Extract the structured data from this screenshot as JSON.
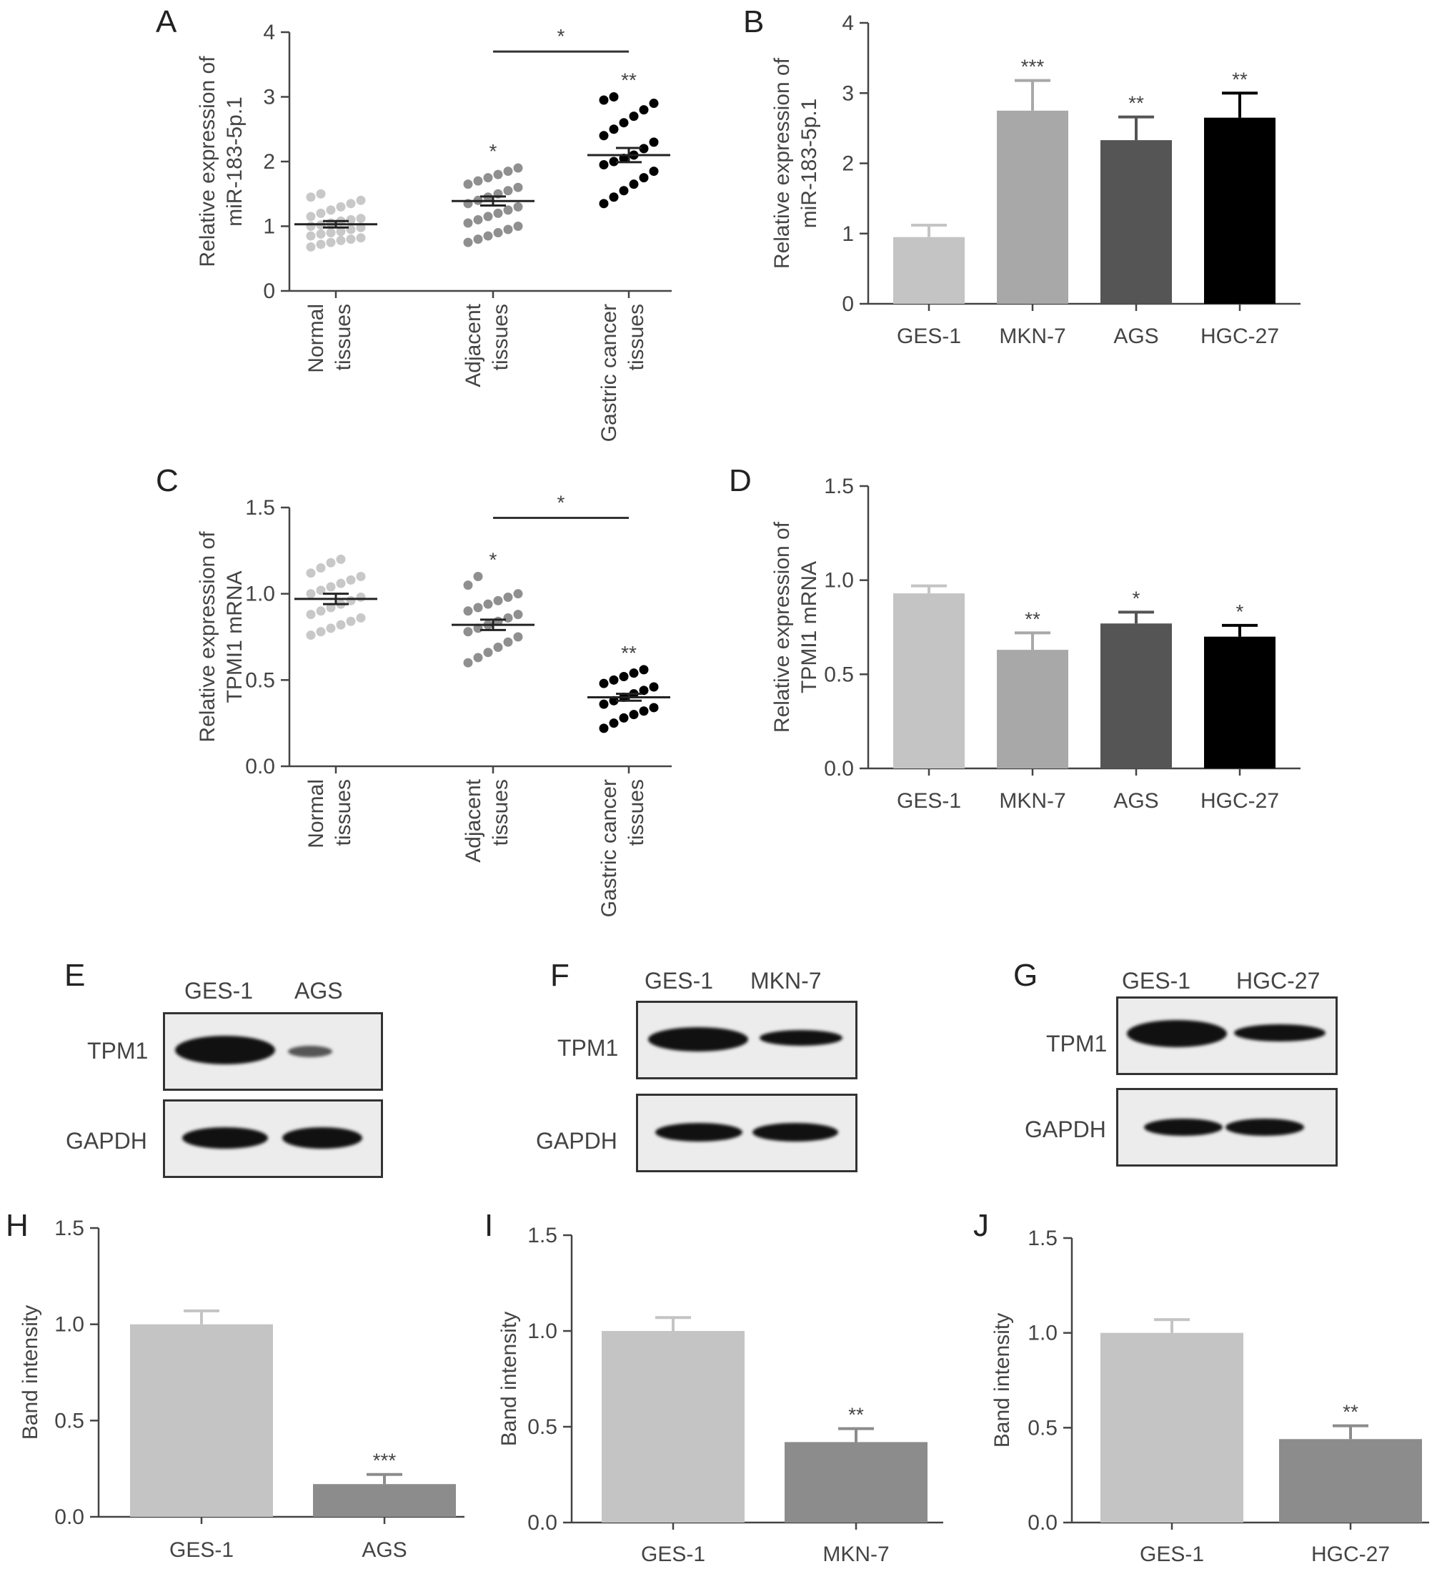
{
  "panels": {
    "A": {
      "letter": "A",
      "ylabel": [
        "Relative expression of",
        "miR-183-5p.1"
      ]
    },
    "B": {
      "letter": "B",
      "ylabel": [
        "Relative expression of",
        "miR-183-5p.1"
      ]
    },
    "C": {
      "letter": "C",
      "ylabel": [
        "Relative expression of",
        "TPMI1 mRNA"
      ]
    },
    "D": {
      "letter": "D",
      "ylabel": [
        "Relative expression of",
        "TPMI1 mRNA"
      ]
    },
    "E": {
      "letter": "E",
      "lanes": [
        "GES-1",
        "AGS"
      ],
      "rows": [
        "TPM1",
        "GAPDH"
      ]
    },
    "F": {
      "letter": "F",
      "lanes": [
        "GES-1",
        "MKN-7"
      ],
      "rows": [
        "TPM1",
        "GAPDH"
      ]
    },
    "G": {
      "letter": "G",
      "lanes": [
        "GES-1",
        "HGC-27"
      ],
      "rows": [
        "TPM1",
        "GAPDH"
      ]
    },
    "H": {
      "letter": "H",
      "ylabel": [
        "Band intensity"
      ]
    },
    "I": {
      "letter": "I",
      "ylabel": [
        "Band intensity"
      ]
    },
    "J": {
      "letter": "J",
      "ylabel": [
        "Band intensity"
      ]
    }
  },
  "colors": {
    "normal": "#c8c8c8",
    "adjacent": "#8f8f8f",
    "cancer": "#000000",
    "ges1": "#c4c4c4",
    "mkn7": "#a8a8a8",
    "ags": "#555555",
    "hgc27": "#000000",
    "bar_grey": "#8c8c8c",
    "sig": "#888888"
  },
  "chart_data": [
    {
      "panel": "A",
      "type": "scatter",
      "categories": [
        [
          "Normal",
          "tissues"
        ],
        [
          "Adjacent",
          "tissues"
        ],
        [
          "Gastric cancer",
          "tissues"
        ]
      ],
      "ylim": [
        0,
        4
      ],
      "yticks": [
        "0",
        "1",
        "2",
        "3",
        "4"
      ],
      "means": [
        1.03,
        1.39,
        2.1
      ],
      "sem": [
        0.05,
        0.07,
        0.11
      ],
      "points": [
        [
          0.68,
          0.72,
          0.75,
          0.78,
          0.8,
          0.82,
          0.85,
          0.88,
          0.9,
          0.92,
          0.95,
          0.98,
          1.0,
          1.02,
          1.05,
          1.08,
          1.1,
          1.12,
          1.15,
          1.2,
          1.25,
          1.3,
          1.35,
          1.4,
          1.45,
          1.5
        ],
        [
          0.75,
          0.8,
          0.85,
          0.9,
          0.95,
          1.0,
          1.05,
          1.1,
          1.15,
          1.2,
          1.25,
          1.3,
          1.35,
          1.4,
          1.45,
          1.5,
          1.55,
          1.6,
          1.65,
          1.7,
          1.75,
          1.8,
          1.85,
          1.9
        ],
        [
          1.35,
          1.45,
          1.55,
          1.65,
          1.75,
          1.85,
          1.95,
          2.0,
          2.05,
          2.1,
          2.2,
          2.3,
          2.4,
          2.5,
          2.6,
          2.7,
          2.8,
          2.9,
          2.95,
          3.0
        ]
      ],
      "stars": [
        "",
        "*",
        "**"
      ],
      "bracket": {
        "from": 1,
        "to": 2,
        "y": 3.7,
        "label": "*"
      }
    },
    {
      "panel": "B",
      "type": "bar",
      "categories": [
        "GES-1",
        "MKN-7",
        "AGS",
        "HGC-27"
      ],
      "values": [
        0.95,
        2.75,
        2.33,
        2.65
      ],
      "errors": [
        0.17,
        0.43,
        0.33,
        0.35
      ],
      "ylim": [
        0,
        4
      ],
      "yticks": [
        "0",
        "1",
        "2",
        "3",
        "4"
      ],
      "stars": [
        "",
        "***",
        "**",
        "**"
      ]
    },
    {
      "panel": "C",
      "type": "scatter",
      "categories": [
        [
          "Normal",
          "tissues"
        ],
        [
          "Adjacent",
          "tissues"
        ],
        [
          "Gastric cancer",
          "tissues"
        ]
      ],
      "ylim": [
        0,
        1.5
      ],
      "yticks": [
        "0.0",
        "0.5",
        "1.0",
        "1.5"
      ],
      "means": [
        0.97,
        0.82,
        0.4
      ],
      "sem": [
        0.03,
        0.03,
        0.02
      ],
      "points": [
        [
          0.76,
          0.78,
          0.8,
          0.82,
          0.84,
          0.86,
          0.88,
          0.9,
          0.92,
          0.94,
          0.96,
          0.98,
          1.0,
          1.02,
          1.04,
          1.06,
          1.08,
          1.1,
          1.12,
          1.15,
          1.18,
          1.2
        ],
        [
          0.6,
          0.63,
          0.66,
          0.69,
          0.72,
          0.75,
          0.78,
          0.8,
          0.82,
          0.84,
          0.86,
          0.88,
          0.9,
          0.92,
          0.94,
          0.96,
          0.98,
          1.0,
          1.05,
          1.1
        ],
        [
          0.22,
          0.25,
          0.28,
          0.3,
          0.32,
          0.34,
          0.36,
          0.38,
          0.4,
          0.42,
          0.44,
          0.46,
          0.48,
          0.5,
          0.52,
          0.54,
          0.56
        ]
      ],
      "stars": [
        "",
        "*",
        "**"
      ],
      "bracket": {
        "from": 1,
        "to": 2,
        "y": 1.44,
        "label": "*"
      }
    },
    {
      "panel": "D",
      "type": "bar",
      "categories": [
        "GES-1",
        "MKN-7",
        "AGS",
        "HGC-27"
      ],
      "values": [
        0.93,
        0.63,
        0.77,
        0.7
      ],
      "errors": [
        0.04,
        0.09,
        0.06,
        0.06
      ],
      "ylim": [
        0,
        1.5
      ],
      "yticks": [
        "0.0",
        "0.5",
        "1.0",
        "1.5"
      ],
      "stars": [
        "",
        "**",
        "*",
        "*"
      ]
    },
    {
      "panel": "H",
      "type": "bar",
      "categories": [
        "GES-1",
        "AGS"
      ],
      "values": [
        1.0,
        0.17
      ],
      "errors": [
        0.07,
        0.05
      ],
      "ylim": [
        0,
        1.5
      ],
      "yticks": [
        "0.0",
        "0.5",
        "1.0",
        "1.5"
      ],
      "stars": [
        "",
        "***"
      ]
    },
    {
      "panel": "I",
      "type": "bar",
      "categories": [
        "GES-1",
        "MKN-7"
      ],
      "values": [
        1.0,
        0.42
      ],
      "errors": [
        0.07,
        0.07
      ],
      "ylim": [
        0,
        1.5
      ],
      "yticks": [
        "0.0",
        "0.5",
        "1.0",
        "1.5"
      ],
      "stars": [
        "",
        "**"
      ]
    },
    {
      "panel": "J",
      "type": "bar",
      "categories": [
        "GES-1",
        "HGC-27"
      ],
      "values": [
        1.0,
        0.44
      ],
      "errors": [
        0.07,
        0.07
      ],
      "ylim": [
        0,
        1.5
      ],
      "yticks": [
        "0.0",
        "0.5",
        "1.0",
        "1.5"
      ],
      "stars": [
        "",
        "**"
      ]
    }
  ]
}
